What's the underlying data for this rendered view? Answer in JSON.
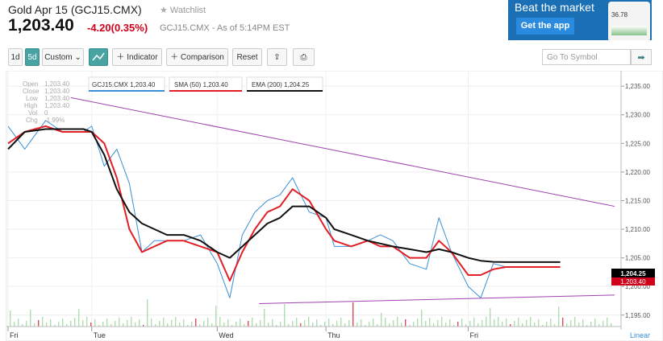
{
  "header": {
    "title": "Gold Apr 15 (GCJ15.CMX)",
    "watchlist_label": "Watchlist",
    "price": "1,203.40",
    "change": "-4.20(0.35%)",
    "asof": "GCJ15.CMX - As of 5:14PM EST"
  },
  "ad": {
    "headline": "Beat the market",
    "button": "Get the app",
    "phone_value": "36.78"
  },
  "toolbar": {
    "range_1d": "1d",
    "range_5d": "5d",
    "custom": "Custom",
    "indicator": "Indicator",
    "comparison": "Comparison",
    "reset": "Reset",
    "goto_placeholder": "Go To Symbol"
  },
  "ohlc": {
    "labels": [
      "Open",
      "Close",
      "Low",
      "High",
      "Vol",
      "Chg"
    ],
    "values": [
      "1,203.40",
      "1,203.40",
      "1,203.40",
      "1,203.40",
      "0",
      "-1.99%"
    ]
  },
  "legend": {
    "main": "GCJ15.CMX 1,203.40",
    "sma": "SMA (50) 1,203.40",
    "ema": "EMA (200) 1,204.25"
  },
  "last_value_tags": {
    "ema": "1,204.25",
    "price": "1,203.40"
  },
  "scale_label": "Linear",
  "colors": {
    "price": "#3b8fd6",
    "sma": "#e21e26",
    "ema": "#111111",
    "trend": "#a040b0",
    "volume": "#8fd08f",
    "down": "#d0021b",
    "accent": "#4aa3a3"
  },
  "chart_data": {
    "type": "line",
    "x": [
      "Fri",
      "Fri",
      "Fri",
      "Fri",
      "Fri",
      "Tue",
      "Tue",
      "Tue",
      "Tue",
      "Tue",
      "Tue",
      "Tue",
      "Tue",
      "Tue",
      "Wed",
      "Wed",
      "Wed",
      "Wed",
      "Wed",
      "Wed",
      "Wed",
      "Wed",
      "Thu",
      "Thu",
      "Thu",
      "Thu",
      "Thu",
      "Thu",
      "Thu",
      "Thu",
      "Thu",
      "Thu",
      "Fri",
      "Fri",
      "Fri",
      "Fri",
      "Fri",
      "Fri",
      "Fri",
      "Fri"
    ],
    "x_positions": [
      0,
      0.4,
      0.9,
      1.3,
      1.8,
      2.0,
      2.3,
      2.6,
      2.9,
      3.2,
      3.5,
      3.8,
      4.2,
      4.6,
      5.0,
      5.3,
      5.6,
      5.9,
      6.2,
      6.5,
      6.8,
      7.2,
      7.6,
      7.8,
      8.2,
      8.6,
      8.9,
      9.2,
      9.6,
      10.0,
      10.3,
      10.6,
      11.0,
      11.3,
      11.6,
      11.9,
      12.2,
      12.5,
      12.8,
      13.2
    ],
    "x_tick_labels": [
      "Fri",
      "Tue",
      "Wed",
      "Thu",
      "Fri"
    ],
    "y_range": [
      1193,
      1236
    ],
    "y_ticks": [
      1195,
      1200,
      1205,
      1210,
      1215,
      1220,
      1225,
      1230,
      1235
    ],
    "y_tick_labels": [
      "1,195.00",
      "1,200.00",
      "1,205.00",
      "1,210.00",
      "1,215.00",
      "1,220.00",
      "1,225.00",
      "1,230.00",
      "1,235.00"
    ],
    "series": [
      {
        "name": "GCJ15.CMX",
        "values": [
          1228,
          1224,
          1229,
          1227,
          1227,
          1228,
          1221,
          1224,
          1218,
          1206,
          1208,
          1208,
          1208,
          1209,
          1204,
          1198,
          1209,
          1213,
          1215,
          1216,
          1219,
          1213,
          1212,
          1207,
          1207,
          1208,
          1209,
          1208,
          1204,
          1203,
          1212,
          1206,
          1200,
          1198,
          1204,
          1203.4,
          1203.4,
          1203.4,
          1203.4,
          1203.4
        ]
      },
      {
        "name": "SMA (50)",
        "values": [
          1225,
          1227,
          1228,
          1227,
          1227,
          1227,
          1225,
          1219,
          1210,
          1206,
          1207,
          1208,
          1208,
          1207,
          1206,
          1201,
          1206,
          1210,
          1213,
          1214,
          1217,
          1215,
          1210,
          1208,
          1207,
          1208,
          1207,
          1207,
          1205,
          1205,
          1208,
          1206,
          1202,
          1202,
          1203,
          1203.4,
          1203.4,
          1203.4,
          1203.4,
          1203.4
        ]
      },
      {
        "name": "EMA (200)",
        "values": [
          1224,
          1227,
          1227.5,
          1227.5,
          1227.5,
          1227,
          1223,
          1217,
          1213,
          1211,
          1210,
          1209,
          1209,
          1208,
          1206,
          1205,
          1207,
          1209,
          1211,
          1212,
          1214,
          1214,
          1212,
          1210,
          1209,
          1208,
          1207.5,
          1207,
          1206.5,
          1206,
          1206.5,
          1206,
          1205,
          1204.5,
          1204.3,
          1204.25,
          1204.25,
          1204.25,
          1204.25,
          1204.25
        ]
      }
    ],
    "trendlines": [
      {
        "from": [
          1.5,
          1233
        ],
        "to": [
          14.5,
          1214
        ]
      },
      {
        "from": [
          6.0,
          1197
        ],
        "to": [
          14.5,
          1198.5
        ]
      }
    ],
    "xlabel": "",
    "ylabel": "",
    "grid": true,
    "legend": "top-left"
  }
}
